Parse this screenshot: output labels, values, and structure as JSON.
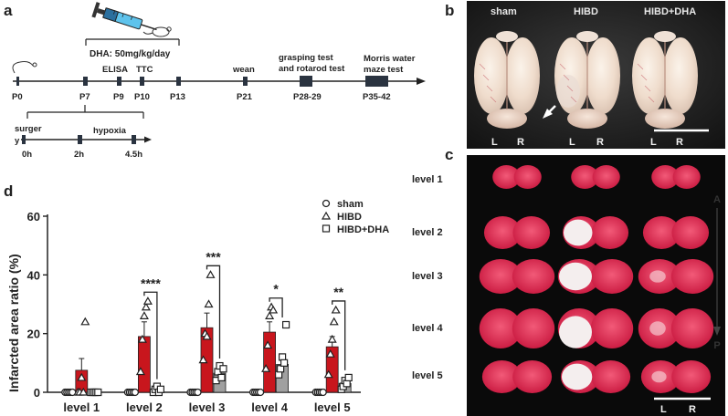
{
  "panel_labels": {
    "a": "a",
    "b": "b",
    "c": "c",
    "d": "d"
  },
  "timeline": {
    "dose": "DHA: 50mg/kg/day",
    "ticks": [
      "P0",
      "P7",
      "P9",
      "P10",
      "P13",
      "P21",
      "P28-29",
      "P35-42"
    ],
    "above": {
      "elisa": "ELISA",
      "ttc": "TTC",
      "wean": "wean",
      "grasp1": "grasping test",
      "grasp2": "and rotarod test",
      "morris1": "Morris water",
      "morris2": "maze test"
    },
    "sub": {
      "surgery1": "surger",
      "surgery2": "y",
      "hypoxia": "hypoxia",
      "t0": "0h",
      "t2": "2h",
      "t45": "4.5h"
    }
  },
  "brains": {
    "groups": [
      "sham",
      "HIBD",
      "HIBD+DHA"
    ],
    "L": "L",
    "R": "R"
  },
  "sections": {
    "levels": [
      "level 1",
      "level 2",
      "level 3",
      "level 4",
      "level 5"
    ],
    "A": "A",
    "P": "P",
    "L": "L",
    "R": "R"
  },
  "chart_data": {
    "type": "bar",
    "ylabel": "Infarcted area ratio (%)",
    "ylim": [
      0,
      60
    ],
    "yticks": [
      0,
      20,
      40,
      60
    ],
    "categories": [
      "level 1",
      "level 2",
      "level 3",
      "level 4",
      "level 5"
    ],
    "series": [
      {
        "name": "sham",
        "marker": "circle",
        "color": "#ffffff",
        "values": [
          0,
          0,
          0,
          0,
          0
        ],
        "errors": [
          0,
          0,
          0,
          0,
          0
        ],
        "points": [
          [
            0,
            0,
            0,
            0,
            0
          ],
          [
            0,
            0,
            0,
            0,
            0
          ],
          [
            0,
            0,
            0,
            0,
            0
          ],
          [
            0,
            0,
            0,
            0,
            0
          ],
          [
            0,
            0,
            0,
            0,
            0
          ]
        ]
      },
      {
        "name": "HIBD",
        "marker": "triangle",
        "color": "#c8161d",
        "values": [
          7.5,
          19,
          22,
          20.5,
          15.5
        ],
        "errors": [
          4,
          5,
          5,
          3.5,
          3.5
        ],
        "points": [
          [
            0,
            0,
            5,
            0,
            24
          ],
          [
            7,
            18,
            26,
            29,
            31
          ],
          [
            11,
            20,
            19,
            30,
            40
          ],
          [
            8,
            16,
            26,
            29,
            28
          ],
          [
            6,
            13,
            18,
            24,
            28
          ]
        ]
      },
      {
        "name": "HIBD+DHA",
        "marker": "square",
        "color": "#a0a0a0",
        "values": [
          0,
          1,
          6.5,
          9.5,
          3
        ],
        "errors": [
          0,
          0.5,
          1.5,
          2,
          1
        ],
        "points": [
          [
            0,
            0,
            0,
            0,
            0
          ],
          [
            0,
            1,
            2,
            0,
            1
          ],
          [
            4,
            7,
            9,
            5,
            8
          ],
          [
            6,
            8,
            12,
            10,
            23
          ],
          [
            1,
            2,
            4,
            3,
            5
          ]
        ]
      }
    ],
    "significance": [
      "",
      "****",
      "***",
      "*",
      "**"
    ],
    "legend": "top-right"
  }
}
